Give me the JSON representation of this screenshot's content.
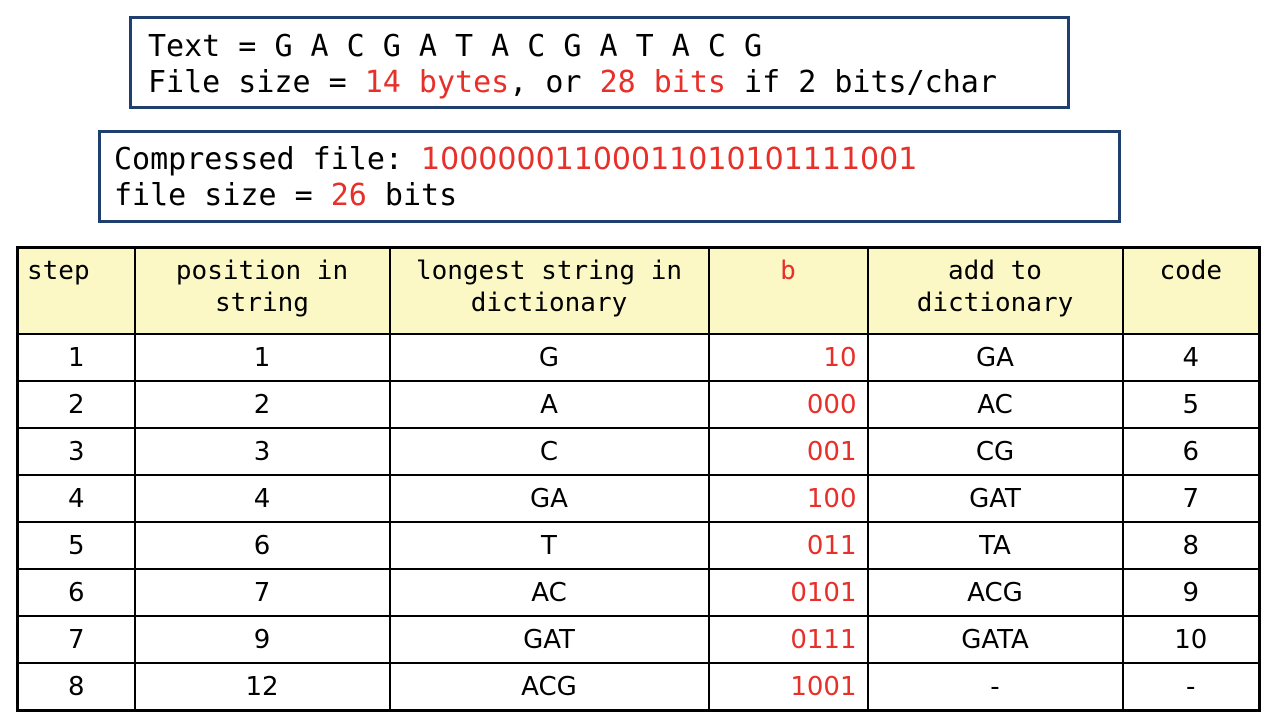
{
  "header_box": {
    "text_label": "Text = ",
    "text_value": "G A C G A T A C G A T A C G",
    "size_prefix": "File size = ",
    "bytes": "14 bytes",
    "middle": ", or ",
    "bits": "28 bits",
    "suffix": " if 2 bits/char"
  },
  "compressed_box": {
    "label": "Compressed file: ",
    "bitstring": "10000001100011010101111001",
    "size_prefix": "file size = ",
    "size_value": "26",
    "size_suffix": " bits"
  },
  "table": {
    "headers": {
      "step": "step",
      "position": "position in string",
      "longest": "longest string in dictionary",
      "b": "b",
      "add": "add to dictionary",
      "code": "code"
    },
    "rows": [
      {
        "step": "1",
        "position": "1",
        "longest": "G",
        "b": "10",
        "add": "GA",
        "code": "4"
      },
      {
        "step": "2",
        "position": "2",
        "longest": "A",
        "b": "000",
        "add": "AC",
        "code": "5"
      },
      {
        "step": "3",
        "position": "3",
        "longest": "C",
        "b": "001",
        "add": "CG",
        "code": "6"
      },
      {
        "step": "4",
        "position": "4",
        "longest": "GA",
        "b": "100",
        "add": "GAT",
        "code": "7"
      },
      {
        "step": "5",
        "position": "6",
        "longest": "T",
        "b": "011",
        "add": "TA",
        "code": "8"
      },
      {
        "step": "6",
        "position": "7",
        "longest": "AC",
        "b": "0101",
        "add": "ACG",
        "code": "9"
      },
      {
        "step": "7",
        "position": "9",
        "longest": "GAT",
        "b": "0111",
        "add": "GATA",
        "code": "10"
      },
      {
        "step": "8",
        "position": "12",
        "longest": "ACG",
        "b": "1001",
        "add": "-",
        "code": "-"
      }
    ]
  },
  "colors": {
    "highlight": "#e8302a",
    "box_border": "#1f3f6e",
    "header_bg": "#fbf8c6"
  }
}
